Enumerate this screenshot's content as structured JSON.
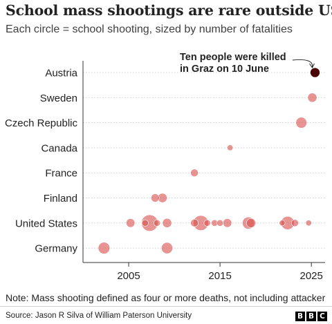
{
  "header": {
    "title": "School mass shootings are rare outside US",
    "subtitle": "Each circle = school shooting, sized by number of fatalities"
  },
  "footer": {
    "note": "Note: Mass shooting defined as four or more deaths, not including attacker",
    "source": "Source: Jason R Silva of William Paterson University",
    "logo_letters": [
      "B",
      "B",
      "C"
    ]
  },
  "colors": {
    "bubble": "#d9534f",
    "bubble_highlight": "#4b0000",
    "gridline": "#cccccc",
    "axis": "#333333"
  },
  "chart_data": {
    "type": "scatter",
    "title": "School mass shootings are rare outside US",
    "subtitle": "Each circle = school shooting, sized by number of fatalities",
    "xlabel": "",
    "ylabel": "",
    "x_range": [
      2000,
      2026.5
    ],
    "x_ticks": [
      2005,
      2015,
      2025
    ],
    "grid": "horizontal",
    "size_encoding": "number of fatalities",
    "categories": [
      "Austria",
      "Sweden",
      "Czech Republic",
      "Canada",
      "France",
      "Finland",
      "United States",
      "Germany"
    ],
    "points": [
      {
        "country": "Austria",
        "year": 2025.4,
        "fatalities": 10,
        "highlight": true
      },
      {
        "country": "Sweden",
        "year": 2025.1,
        "fatalities": 10
      },
      {
        "country": "Czech Republic",
        "year": 2023.9,
        "fatalities": 14
      },
      {
        "country": "Canada",
        "year": 2016.1,
        "fatalities": 4
      },
      {
        "country": "France",
        "year": 2012.2,
        "fatalities": 7
      },
      {
        "country": "Finland",
        "year": 2007.9,
        "fatalities": 8
      },
      {
        "country": "Finland",
        "year": 2008.7,
        "fatalities": 10
      },
      {
        "country": "United States",
        "year": 2005.2,
        "fatalities": 9
      },
      {
        "country": "United States",
        "year": 2006.8,
        "fatalities": 5
      },
      {
        "country": "United States",
        "year": 2007.3,
        "fatalities": 32
      },
      {
        "country": "United States",
        "year": 2008.1,
        "fatalities": 5
      },
      {
        "country": "United States",
        "year": 2009.2,
        "fatalities": 10
      },
      {
        "country": "United States",
        "year": 2012.2,
        "fatalities": 7
      },
      {
        "country": "United States",
        "year": 2012.9,
        "fatalities": 27
      },
      {
        "country": "United States",
        "year": 2013.6,
        "fatalities": 5
      },
      {
        "country": "United States",
        "year": 2014.4,
        "fatalities": 5
      },
      {
        "country": "United States",
        "year": 2015.0,
        "fatalities": 5
      },
      {
        "country": "United States",
        "year": 2015.8,
        "fatalities": 9
      },
      {
        "country": "United States",
        "year": 2018.1,
        "fatalities": 17
      },
      {
        "country": "United States",
        "year": 2018.4,
        "fatalities": 10
      },
      {
        "country": "United States",
        "year": 2021.8,
        "fatalities": 4
      },
      {
        "country": "United States",
        "year": 2022.4,
        "fatalities": 21
      },
      {
        "country": "United States",
        "year": 2023.2,
        "fatalities": 6
      },
      {
        "country": "United States",
        "year": 2024.7,
        "fatalities": 4
      },
      {
        "country": "Germany",
        "year": 2002.3,
        "fatalities": 16
      },
      {
        "country": "Germany",
        "year": 2009.2,
        "fatalities": 15
      }
    ],
    "annotation": {
      "text_lines": [
        "Ten people were killed",
        "in Graz on 10 June"
      ],
      "target": {
        "country": "Austria",
        "year": 2025.4
      }
    }
  }
}
